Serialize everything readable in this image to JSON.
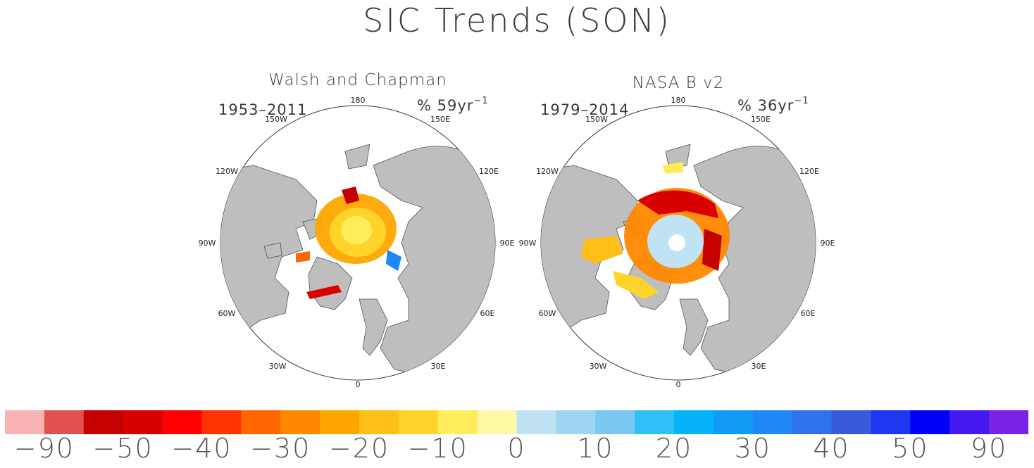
{
  "title": "SIC Trends (SON)",
  "panels": [
    {
      "title": "Walsh and Chapman",
      "period": "1953–2011",
      "trend_unit": "% 59yr",
      "trend_exp": "−1",
      "lon_labels": [
        "180",
        "150E",
        "120E",
        "90E",
        "60E",
        "30E",
        "0",
        "30W",
        "60W",
        "90W",
        "120W",
        "150W"
      ]
    },
    {
      "title": "NASA B v2",
      "period": "1979–2014",
      "trend_unit": "% 36yr",
      "trend_exp": "−1",
      "lon_labels": [
        "180",
        "150E",
        "120E",
        "90E",
        "60E",
        "30E",
        "0",
        "30W",
        "60W",
        "90W",
        "120W",
        "150W"
      ]
    }
  ],
  "colorbar": {
    "colors": [
      "#f9b3b3",
      "#e05252",
      "#c40000",
      "#d90000",
      "#ff0000",
      "#ff3300",
      "#ff6600",
      "#ff8800",
      "#ffa500",
      "#ffbf17",
      "#ffd42a",
      "#ffec5a",
      "#fff8a6",
      "#bfe3f2",
      "#9fd6ef",
      "#78c8f2",
      "#2fc0f5",
      "#06b2fa",
      "#109cf5",
      "#1f88f5",
      "#2f72eb",
      "#3a5bd9",
      "#1f37f0",
      "#0000f8",
      "#4518f0",
      "#7b22e8"
    ],
    "labels": [
      "−90",
      "−50",
      "−40",
      "−30",
      "−20",
      "−10",
      "0",
      "10",
      "20",
      "30",
      "40",
      "50",
      "90"
    ]
  },
  "map_colors": {
    "land": "#bebebe",
    "ocean": "#ffffff",
    "coast": "#555555"
  }
}
